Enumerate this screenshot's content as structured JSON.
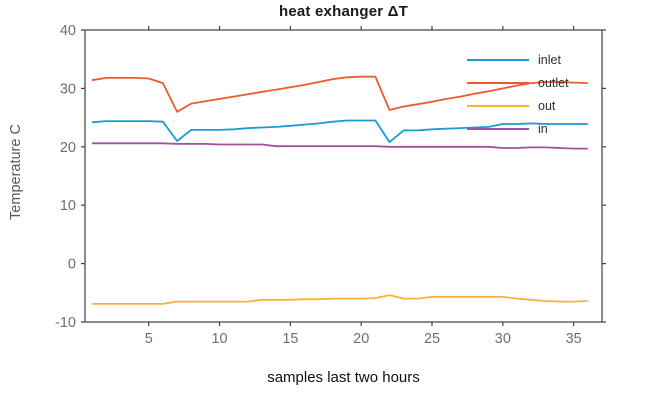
{
  "chart_data": {
    "type": "line",
    "title": "heat exhanger ΔT",
    "xlabel": "samples last two hours",
    "ylabel": "Temperature C",
    "xlim": [
      0.5,
      37
    ],
    "ylim": [
      -10,
      40
    ],
    "xticks": [
      5,
      10,
      15,
      20,
      25,
      30,
      35
    ],
    "yticks": [
      -10,
      0,
      10,
      20,
      30,
      40
    ],
    "grid": false,
    "box": true,
    "tick_direction": "out",
    "legend_position": "inside-top-right",
    "legend_background": "transparent",
    "axis_color": "#3f3f3f",
    "tick_label_color": "#6e6e6e",
    "title_color": "#1a1a1a",
    "x": [
      1,
      2,
      3,
      4,
      5,
      6,
      7,
      8,
      9,
      10,
      11,
      12,
      13,
      14,
      15,
      16,
      17,
      18,
      19,
      20,
      21,
      22,
      23,
      24,
      25,
      26,
      27,
      28,
      29,
      30,
      31,
      32,
      33,
      34,
      35,
      36
    ],
    "series": [
      {
        "name": "inlet",
        "color": "#1a9ad7",
        "values": [
          24.2,
          24.4,
          24.4,
          24.4,
          24.4,
          24.3,
          21.0,
          22.9,
          22.9,
          22.9,
          23.0,
          23.2,
          23.3,
          23.4,
          23.6,
          23.8,
          24.0,
          24.3,
          24.5,
          24.5,
          24.5,
          20.8,
          22.8,
          22.8,
          23.0,
          23.1,
          23.2,
          23.3,
          23.4,
          23.9,
          23.9,
          24.0,
          23.9,
          23.9,
          23.9,
          23.9
        ]
      },
      {
        "name": "outlet",
        "color": "#ee5a30",
        "values": [
          31.4,
          31.8,
          31.8,
          31.8,
          31.7,
          30.9,
          26.0,
          27.4,
          27.8,
          28.2,
          28.6,
          29.0,
          29.4,
          29.8,
          30.2,
          30.6,
          31.1,
          31.6,
          31.9,
          32.0,
          32.0,
          26.3,
          26.9,
          27.3,
          27.7,
          28.2,
          28.6,
          29.1,
          29.5,
          30.0,
          30.5,
          30.9,
          31.1,
          31.1,
          31.0,
          30.9
        ]
      },
      {
        "name": "out",
        "color": "#fbb03b",
        "values": [
          -6.9,
          -6.9,
          -6.9,
          -6.9,
          -6.9,
          -6.9,
          -6.5,
          -6.5,
          -6.5,
          -6.5,
          -6.5,
          -6.5,
          -6.2,
          -6.2,
          -6.2,
          -6.1,
          -6.1,
          -6.0,
          -6.0,
          -6.0,
          -5.9,
          -5.4,
          -6.0,
          -6.0,
          -5.7,
          -5.7,
          -5.7,
          -5.7,
          -5.7,
          -5.7,
          -6.0,
          -6.2,
          -6.4,
          -6.5,
          -6.5,
          -6.4
        ]
      },
      {
        "name": "in",
        "color": "#a0509f",
        "values": [
          20.6,
          20.6,
          20.6,
          20.6,
          20.6,
          20.6,
          20.5,
          20.5,
          20.5,
          20.4,
          20.4,
          20.4,
          20.4,
          20.1,
          20.1,
          20.1,
          20.1,
          20.1,
          20.1,
          20.1,
          20.1,
          20.0,
          20.0,
          20.0,
          20.0,
          20.0,
          20.0,
          20.0,
          20.0,
          19.8,
          19.8,
          19.9,
          19.9,
          19.8,
          19.7,
          19.7
        ]
      }
    ],
    "legend_entries": [
      "inlet",
      "outlet",
      "out",
      "in"
    ]
  }
}
